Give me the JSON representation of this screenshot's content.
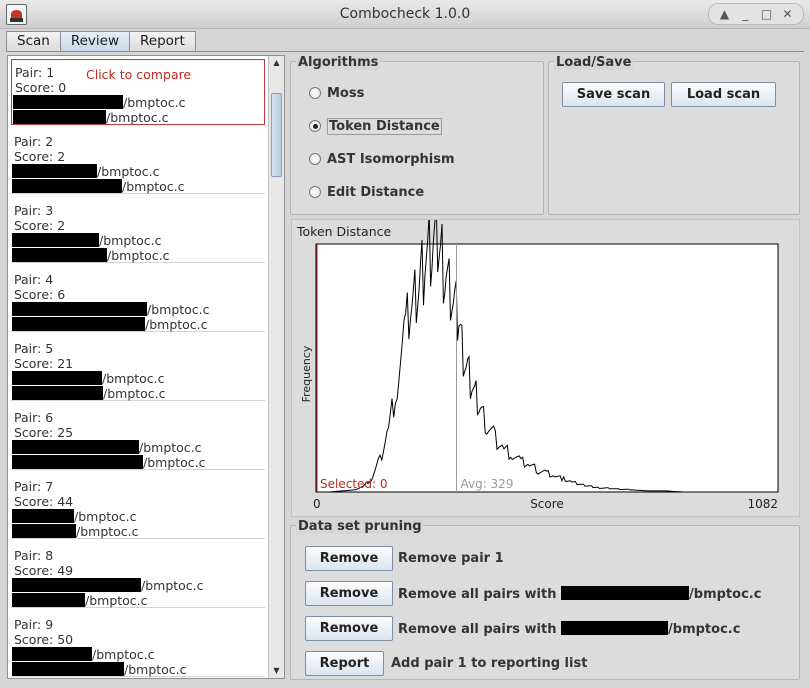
{
  "window": {
    "title": "Combocheck 1.0.0",
    "buttons": [
      "▲",
      "_",
      "□",
      "✕"
    ]
  },
  "tabs": [
    {
      "label": "Scan"
    },
    {
      "label": "Review"
    },
    {
      "label": "Report"
    }
  ],
  "pairs": [
    {
      "pair": "Pair: 1",
      "score": "Score: 0",
      "file1": "/bmptoc.c",
      "file2": "/bmptoc.c",
      "r1": 110,
      "r2": 93,
      "selected": true,
      "hint": "Click to compare"
    },
    {
      "pair": "Pair: 2",
      "score": "Score: 2",
      "file1": "/bmptoc.c",
      "file2": "/bmptoc.c",
      "r1": 85,
      "r2": 110
    },
    {
      "pair": "Pair: 3",
      "score": "Score: 2",
      "file1": "/bmptoc.c",
      "file2": "/bmptoc.c",
      "r1": 87,
      "r2": 95
    },
    {
      "pair": "Pair: 4",
      "score": "Score: 6",
      "file1": "/bmptoc.c",
      "file2": "/bmptoc.c",
      "r1": 135,
      "r2": 133
    },
    {
      "pair": "Pair: 5",
      "score": "Score: 21",
      "file1": "/bmptoc.c",
      "file2": "/bmptoc.c",
      "r1": 90,
      "r2": 91
    },
    {
      "pair": "Pair: 6",
      "score": "Score: 25",
      "file1": "/bmptoc.c",
      "file2": "/bmptoc.c",
      "r1": 127,
      "r2": 131
    },
    {
      "pair": "Pair: 7",
      "score": "Score: 44",
      "file1": "/bmptoc.c",
      "file2": "/bmptoc.c",
      "r1": 62,
      "r2": 64
    },
    {
      "pair": "Pair: 8",
      "score": "Score: 49",
      "file1": "/bmptoc.c",
      "file2": "/bmptoc.c",
      "r1": 129,
      "r2": 73
    },
    {
      "pair": "Pair: 9",
      "score": "Score: 50",
      "file1": "/bmptoc.c",
      "file2": "/bmptoc.c",
      "r1": 80,
      "r2": 112
    }
  ],
  "algorithms": {
    "legend": "Algorithms",
    "options": [
      {
        "label": "Moss",
        "checked": false
      },
      {
        "label": "Token Distance",
        "checked": true
      },
      {
        "label": "AST Isomorphism",
        "checked": false
      },
      {
        "label": "Edit Distance",
        "checked": false
      }
    ]
  },
  "loadsave": {
    "legend": "Load/Save",
    "save": "Save scan",
    "load": "Load scan"
  },
  "chart_data": {
    "type": "line",
    "title": "Token Distance",
    "xlabel": "Score",
    "ylabel": "Frequency",
    "xlim": [
      0,
      1082
    ],
    "x_ticks": [
      "0",
      "1082"
    ],
    "selected_label": "Selected: 0",
    "selected_value": 0,
    "avg_label": "Avg: 329",
    "avg_value": 329,
    "series_color": "#000000",
    "selected_color": "#c0291f",
    "avg_color": "#9a9a9a",
    "x": [
      0,
      30,
      60,
      90,
      110,
      130,
      150,
      170,
      190,
      210,
      225,
      235,
      245,
      255,
      265,
      275,
      285,
      295,
      305,
      315,
      325,
      335,
      345,
      355,
      365,
      375,
      385,
      400,
      420,
      440,
      460,
      480,
      500,
      520,
      540,
      560,
      580,
      600,
      630,
      660,
      700,
      740,
      780,
      820,
      860,
      900,
      1000,
      1082
    ],
    "y": [
      0,
      0,
      1,
      2,
      5,
      12,
      30,
      60,
      100,
      150,
      180,
      190,
      200,
      215,
      220,
      225,
      228,
      218,
      200,
      185,
      170,
      160,
      130,
      115,
      100,
      88,
      75,
      60,
      50,
      40,
      35,
      28,
      25,
      20,
      18,
      15,
      12,
      9,
      6,
      4,
      3,
      2,
      1,
      1,
      0,
      0,
      0,
      0
    ],
    "ylim": [
      0,
      230
    ]
  },
  "pruning": {
    "legend": "Data set pruning",
    "rows": [
      {
        "button": "Remove",
        "text": "Remove pair 1",
        "redact": 0,
        "file": ""
      },
      {
        "button": "Remove",
        "text": "Remove all pairs with",
        "redact": 128,
        "file": "/bmptoc.c"
      },
      {
        "button": "Remove",
        "text": "Remove all pairs with",
        "redact": 107,
        "file": "/bmptoc.c"
      },
      {
        "button": "Report",
        "text": "Add pair 1 to reporting list",
        "redact": 0,
        "file": ""
      }
    ]
  }
}
